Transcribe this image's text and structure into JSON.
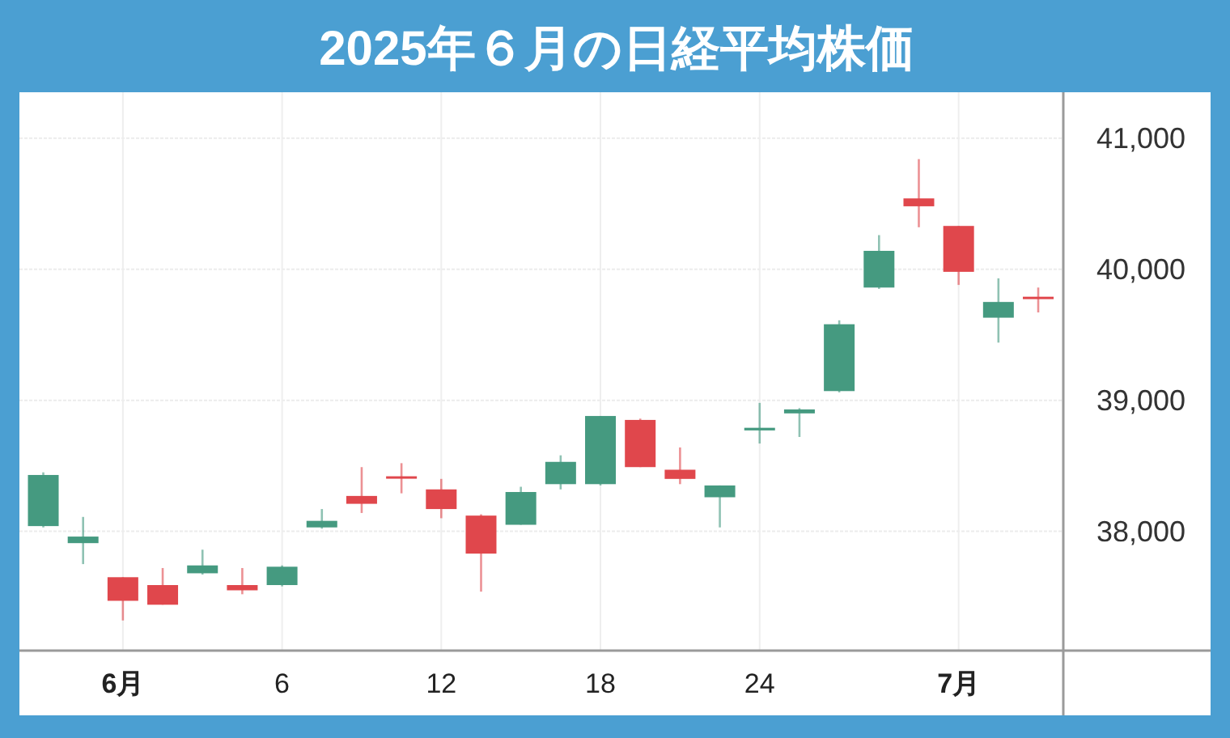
{
  "chart_data": {
    "type": "candlestick",
    "title": "2025年６月の日経平均株価",
    "categories": [
      null,
      null,
      "6月",
      null,
      null,
      null,
      "6",
      null,
      null,
      null,
      "12",
      null,
      null,
      null,
      "18",
      null,
      null,
      null,
      "24",
      null,
      null,
      null,
      null,
      "7月",
      null,
      null
    ],
    "ohlc": [
      [
        38040,
        38450,
        38030,
        38430
      ],
      [
        37910,
        38110,
        37750,
        37960
      ],
      [
        37650,
        37650,
        37320,
        37470
      ],
      [
        37590,
        37720,
        37440,
        37440
      ],
      [
        37680,
        37860,
        37670,
        37740
      ],
      [
        37590,
        37720,
        37520,
        37550
      ],
      [
        37590,
        37740,
        37580,
        37730
      ],
      [
        38030,
        38170,
        38020,
        38080
      ],
      [
        38270,
        38490,
        38140,
        38210
      ],
      [
        38420,
        38520,
        38290,
        38410
      ],
      [
        38320,
        38400,
        38100,
        38170
      ],
      [
        38120,
        38130,
        37540,
        37830
      ],
      [
        38050,
        38340,
        38050,
        38300
      ],
      [
        38360,
        38580,
        38320,
        38530
      ],
      [
        38360,
        38880,
        38350,
        38880
      ],
      [
        38850,
        38860,
        38490,
        38490
      ],
      [
        38470,
        38640,
        38360,
        38400
      ],
      [
        38260,
        38350,
        38030,
        38350
      ],
      [
        38770,
        38980,
        38670,
        38790
      ],
      [
        38900,
        38940,
        38720,
        38930
      ],
      [
        39070,
        39610,
        39060,
        39580
      ],
      [
        39860,
        40260,
        39850,
        40140
      ],
      [
        40540,
        40840,
        40320,
        40480
      ],
      [
        40330,
        40330,
        39880,
        39980
      ],
      [
        39630,
        39930,
        39440,
        39750
      ],
      [
        39790,
        39860,
        39670,
        39780
      ]
    ],
    "colors": [
      "#459a80",
      "#459a80",
      "#e0474c",
      "#e0474c",
      "#459a80",
      "#e0474c",
      "#459a80",
      "#459a80",
      "#e0474c",
      "#e0474c",
      "#e0474c",
      "#e0474c",
      "#459a80",
      "#459a80",
      "#459a80",
      "#e0474c",
      "#e0474c",
      "#459a80",
      "#459a80",
      "#459a80",
      "#459a80",
      "#459a80",
      "#e0474c",
      "#e0474c",
      "#459a80",
      "#e0474c"
    ],
    "ylim": [
      37090,
      41350
    ],
    "yticks": [
      {
        "value": 38000,
        "label": "38,000"
      },
      {
        "value": 39000,
        "label": "39,000"
      },
      {
        "value": 40000,
        "label": "40,000"
      },
      {
        "value": 41000,
        "label": "41,000"
      }
    ],
    "grid": true
  }
}
